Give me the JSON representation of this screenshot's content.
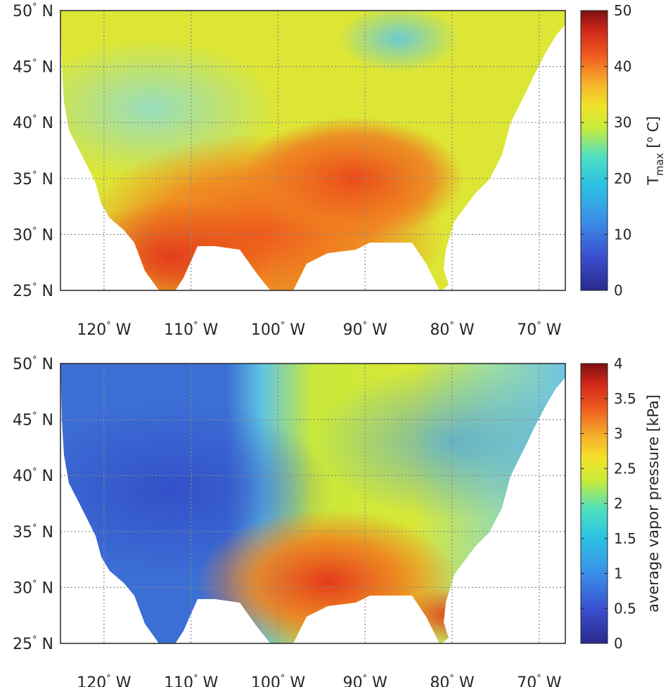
{
  "figure": {
    "panels": [
      {
        "id": "tmax",
        "colorbar_label_main": "T",
        "colorbar_label_sub": "max",
        "colorbar_label_unit": " [",
        "colorbar_label_unit_sup": "o",
        "colorbar_label_unit_end": " C]",
        "colorbar_ticks": [
          "0",
          "10",
          "20",
          "30",
          "40",
          "50"
        ],
        "colorbar_range": [
          0,
          50
        ]
      },
      {
        "id": "vapor",
        "colorbar_label": "average vapor pressure [kPa]",
        "colorbar_ticks": [
          "0",
          "0.5",
          "1",
          "1.5",
          "2",
          "2.5",
          "3",
          "3.5",
          "4"
        ],
        "colorbar_range": [
          0,
          4
        ]
      }
    ],
    "lat_ticks": [
      {
        "num": "50",
        "hemi": "N"
      },
      {
        "num": "45",
        "hemi": "N"
      },
      {
        "num": "40",
        "hemi": "N"
      },
      {
        "num": "35",
        "hemi": "N"
      },
      {
        "num": "30",
        "hemi": "N"
      },
      {
        "num": "25",
        "hemi": "N"
      }
    ],
    "lon_ticks": [
      {
        "num": "120",
        "hemi": "W"
      },
      {
        "num": "110",
        "hemi": "W"
      },
      {
        "num": "100",
        "hemi": "W"
      },
      {
        "num": "90",
        "hemi": "W"
      },
      {
        "num": "80",
        "hemi": "W"
      },
      {
        "num": "70",
        "hemi": "W"
      }
    ],
    "lat_range": [
      25,
      50
    ],
    "lon_range": [
      -125,
      -67
    ],
    "grid": "dotted",
    "colormap": [
      "#30123b",
      "#4145ab",
      "#4675ed",
      "#39a2fc",
      "#1bcfd4",
      "#24eca6",
      "#61fc6c",
      "#a4fc3b",
      "#d1e834",
      "#f3c63a",
      "#fe9b2d",
      "#f36315",
      "#d93806",
      "#b11901",
      "#7a0402"
    ]
  }
}
